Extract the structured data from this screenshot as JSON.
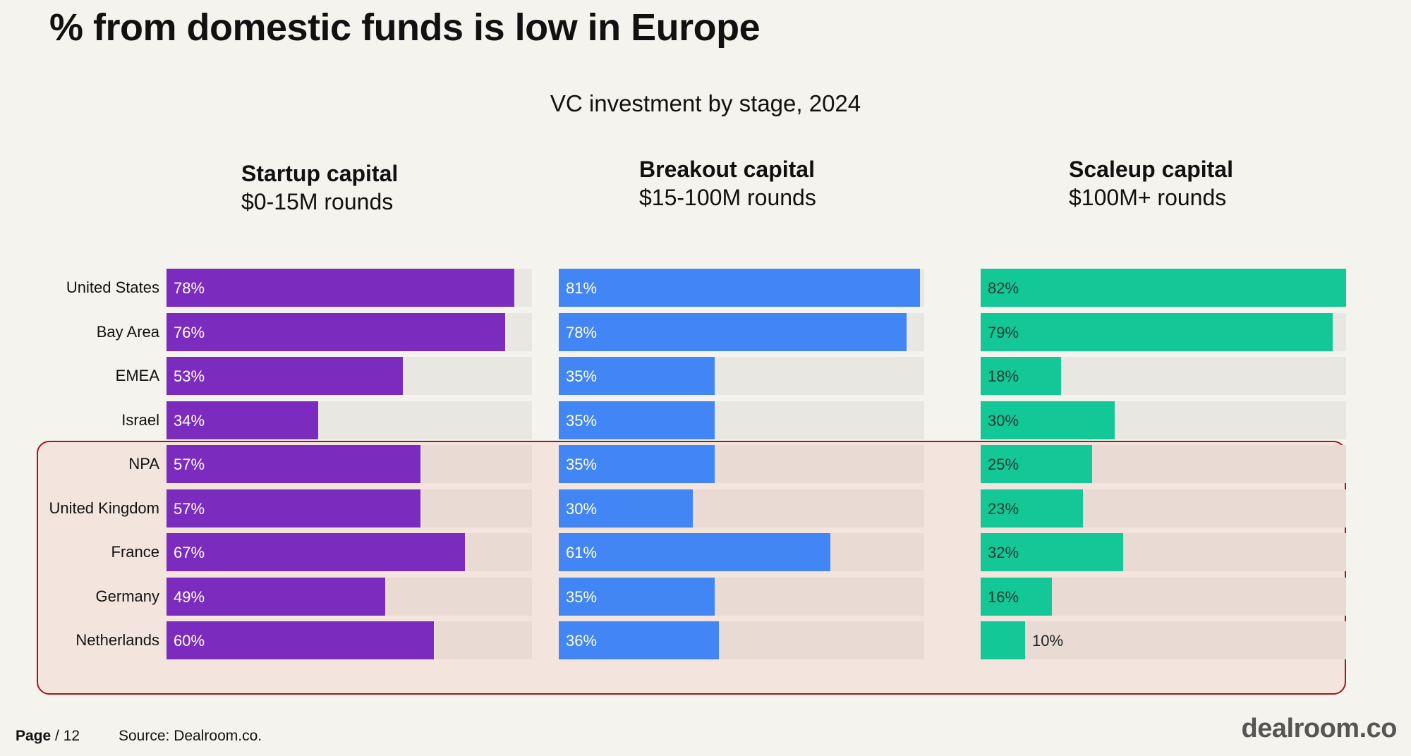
{
  "slide": {
    "title": "% from domestic funds is low in Europe",
    "page_label": "Page",
    "page_sep": " / ",
    "page_number": "12",
    "source": "Source: Dealroom.co.",
    "logo": "dealroom.co"
  },
  "chart_data": {
    "type": "bar",
    "title": "VC investment by stage, 2024",
    "categories": [
      "United States",
      "Bay Area",
      "EMEA",
      "Israel",
      "NPA",
      "United Kingdom",
      "France",
      "Germany",
      "Netherlands"
    ],
    "highlighted_categories": [
      "NPA",
      "United Kingdom",
      "France",
      "Germany",
      "Netherlands"
    ],
    "xlim": [
      0,
      82
    ],
    "series": [
      {
        "name": "Startup capital",
        "subtitle": "$0-15M rounds",
        "color": "#7b2cbf",
        "values": [
          78,
          76,
          53,
          34,
          57,
          57,
          67,
          49,
          60
        ],
        "labels": [
          "78%",
          "76%",
          "53%",
          "34%",
          "57%",
          "57%",
          "67%",
          "49%",
          "60%"
        ]
      },
      {
        "name": "Breakout capital",
        "subtitle": "$15-100M rounds",
        "color": "#4285f4",
        "values": [
          81,
          78,
          35,
          35,
          35,
          30,
          61,
          35,
          36
        ],
        "labels": [
          "81%",
          "78%",
          "35%",
          "35%",
          "35%",
          "30%",
          "61%",
          "35%",
          "36%"
        ]
      },
      {
        "name": "Scaleup capital",
        "subtitle": "$100M+ rounds",
        "color": "#13c896",
        "values": [
          82,
          79,
          18,
          30,
          25,
          23,
          32,
          16,
          10
        ],
        "labels": [
          "82%",
          "79%",
          "18%",
          "30%",
          "25%",
          "23%",
          "32%",
          "16%",
          "10%"
        ]
      }
    ]
  }
}
